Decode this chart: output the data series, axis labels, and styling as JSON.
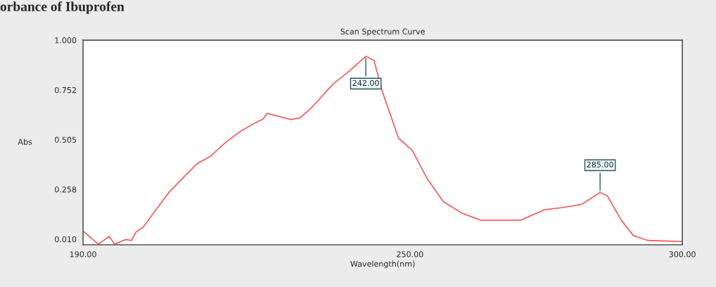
{
  "chart_data": {
    "type": "line",
    "title": "orbance of Ibuprofen",
    "subtitle": "Scan Spectrum Curve",
    "xlabel": "Wavelength(nm)",
    "ylabel": "Abs",
    "x": [
      190,
      192.8,
      194.8,
      195.8,
      197.8,
      198.9,
      199.7,
      201.0,
      203.2,
      205.8,
      208.3,
      210.9,
      213.5,
      216.1,
      218.7,
      221.2,
      223.0,
      223.8,
      225.5,
      228.1,
      229.8,
      232.0,
      235.9,
      238.9,
      241.9,
      243.4,
      244.9,
      247.9,
      250.5,
      253.1,
      256.1,
      259.6,
      263.0,
      270.3,
      274.6,
      278.1,
      281.5,
      284.9,
      286.2,
      288.8,
      291.0,
      293.6,
      300
    ],
    "series": [
      {
        "color": "#f06464",
        "values": [
          0.051,
          -0.015,
          0.024,
          -0.015,
          0.008,
          0.004,
          0.045,
          0.069,
          0.15,
          0.244,
          0.314,
          0.385,
          0.425,
          0.49,
          0.543,
          0.583,
          0.607,
          0.636,
          0.624,
          0.605,
          0.613,
          0.666,
          0.782,
          0.847,
          0.92,
          0.9,
          0.747,
          0.513,
          0.449,
          0.314,
          0.197,
          0.139,
          0.104,
          0.104,
          0.156,
          0.168,
          0.183,
          0.242,
          0.227,
          0.104,
          0.028,
          0.004,
          -0.002
        ]
      }
    ],
    "xlim": [
      190,
      300
    ],
    "xticks": [
      {
        "value": 190,
        "label": "190.00"
      },
      {
        "value": 250,
        "label": "250.00"
      },
      {
        "value": 300,
        "label": "300.00"
      }
    ],
    "ylim": [
      -0.018,
      1.0
    ],
    "yticks": [
      {
        "value": 0.01,
        "label": "0.010"
      },
      {
        "value": 0.258,
        "label": "0.258"
      },
      {
        "value": 0.505,
        "label": "0.505"
      },
      {
        "value": 0.752,
        "label": "0.752"
      },
      {
        "value": 1.0,
        "label": "1.000"
      }
    ],
    "annotations": [
      {
        "text": "242.00",
        "x": 241.9,
        "y": 0.92
      },
      {
        "text": "285.00",
        "x": 284.9,
        "y": 0.242
      }
    ],
    "grid": false,
    "marker": "none",
    "line_style": "solid"
  }
}
